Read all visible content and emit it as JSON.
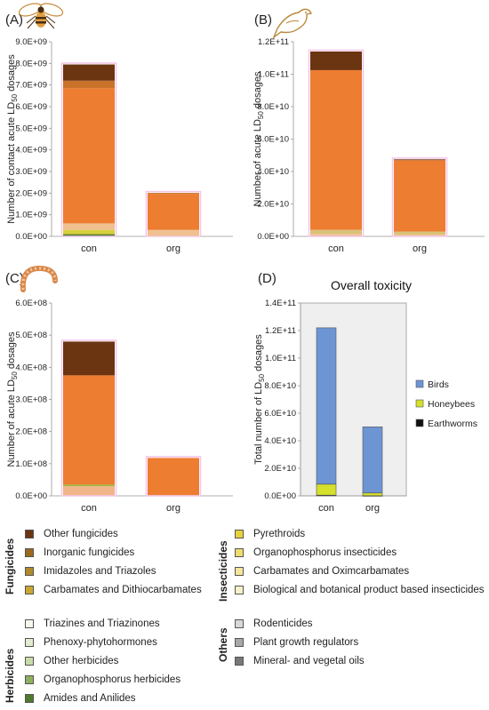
{
  "panels": {
    "a": {
      "label": "(A)",
      "icon": "bee-icon"
    },
    "b": {
      "label": "(B)",
      "icon": "bird-icon"
    },
    "c": {
      "label": "(C)",
      "icon": "earthworm-icon"
    },
    "d": {
      "label": "(D)"
    }
  },
  "chart_data": [
    {
      "type": "bar",
      "stacked": true,
      "panel": "(A)",
      "ylabel": "Number of contact acute LD50 dosages",
      "categories": [
        "con",
        "org"
      ],
      "ylim": [
        0,
        9000000000
      ],
      "yticks": [
        "0.0E+00",
        "1.0E+09",
        "2.0E+09",
        "3.0E+09",
        "4.0E+09",
        "5.0E+09",
        "6.0E+09",
        "7.0E+09",
        "8.0E+09",
        "9.0E+09"
      ],
      "series": [
        {
          "color": "#4e7a2e",
          "values": [
            100000000,
            20000000
          ]
        },
        {
          "color": "#d8cf3a",
          "values": [
            200000000,
            20000000
          ]
        },
        {
          "color": "#f0c090",
          "values": [
            300000000,
            260000000
          ]
        },
        {
          "color": "#ed7d31",
          "values": [
            6250000000,
            1660000000
          ]
        },
        {
          "color": "#c9722a",
          "values": [
            350000000,
            50000000
          ]
        },
        {
          "color": "#6b3512",
          "values": [
            750000000,
            0
          ]
        }
      ]
    },
    {
      "type": "bar",
      "stacked": true,
      "panel": "(B)",
      "ylabel": "Number of acute LD50 dosages",
      "categories": [
        "con",
        "org"
      ],
      "ylim": [
        0,
        120000000000
      ],
      "yticks": [
        "0.0E+00",
        "2.0E+10",
        "4.0E+10",
        "6.0E+10",
        "8.0E+10",
        "1.0E+11",
        "1.2E+11"
      ],
      "series": [
        {
          "color": "#f0c090",
          "values": [
            1500000000,
            1000000000
          ]
        },
        {
          "color": "#d9c27a",
          "values": [
            2500000000,
            2000000000
          ]
        },
        {
          "color": "#ed7d31",
          "values": [
            98500000000,
            44000000000
          ]
        },
        {
          "color": "#6b3512",
          "values": [
            11500000000,
            500000000
          ]
        }
      ]
    },
    {
      "type": "bar",
      "stacked": true,
      "panel": "(C)",
      "ylabel": "Number of acute LD50 dosages",
      "categories": [
        "con",
        "org"
      ],
      "ylim": [
        0,
        600000000
      ],
      "yticks": [
        "0.0E+00",
        "1.0E+08",
        "2.0E+08",
        "3.0E+08",
        "4.0E+08",
        "5.0E+08",
        "6.0E+08"
      ],
      "series": [
        {
          "color": "#f2b48a",
          "values": [
            30000000,
            0
          ]
        },
        {
          "color": "#9cb83c",
          "values": [
            5000000,
            2000000
          ]
        },
        {
          "color": "#ed7d31",
          "values": [
            340000000,
            116000000
          ]
        },
        {
          "color": "#6b3512",
          "values": [
            105000000,
            0
          ]
        }
      ]
    },
    {
      "type": "bar",
      "stacked": true,
      "panel": "(D)",
      "title": "Overall toxicity",
      "ylabel": "Total number of LD50 dosages",
      "categories": [
        "con",
        "org"
      ],
      "ylim": [
        0,
        140000000000
      ],
      "yticks": [
        "0.0E+00",
        "2.0E+10",
        "4.0E+10",
        "6.0E+10",
        "8.0E+10",
        "1.0E+11",
        "1.2E+11",
        "1.4E+11"
      ],
      "legend_position": "right",
      "series": [
        {
          "name": "Earthworms",
          "color": "#111111",
          "values": [
            500000000,
            100000000
          ]
        },
        {
          "name": "Honeybees",
          "color": "#d4e02a",
          "values": [
            8000000000,
            2000000000
          ]
        },
        {
          "name": "Birds",
          "color": "#6d95d4",
          "values": [
            113500000000,
            48000000000
          ]
        }
      ]
    }
  ],
  "legend": {
    "groups": [
      {
        "name": "Fungicides",
        "items": [
          {
            "label": "Other fungicides",
            "color": "#6b3512"
          },
          {
            "label": "Inorganic fungicides",
            "color": "#9a6b1c"
          },
          {
            "label": "Imidazoles and Triazoles",
            "color": "#b08a2a"
          },
          {
            "label": "Carbamates and Dithiocarbamates",
            "color": "#c8a830"
          }
        ]
      },
      {
        "name": "Insecticides",
        "items": [
          {
            "label": "Pyrethroids",
            "color": "#e8d23a"
          },
          {
            "label": "Organophosphorus insecticides",
            "color": "#f0dc6a"
          },
          {
            "label": "Carbamates and Oximcarbamates",
            "color": "#f4e69a"
          },
          {
            "label": "Biological and botanical product based insecticides",
            "color": "#f8f0c8"
          }
        ]
      },
      {
        "name": "Herbicides",
        "items": [
          {
            "label": "Triazines and Triazinones",
            "color": "#f4f8ee"
          },
          {
            "label": "Phenoxy-phytohormones",
            "color": "#e2ecd0"
          },
          {
            "label": "Other herbicides",
            "color": "#c9dba8"
          },
          {
            "label": "Organophosphorus herbicides",
            "color": "#8fb060"
          },
          {
            "label": "Amides and Anilides",
            "color": "#4e7a2e"
          }
        ]
      },
      {
        "name": "Others",
        "items": [
          {
            "label": "Rodenticides",
            "color": "#d8d8d8"
          },
          {
            "label": "Plant growth regulators",
            "color": "#a8a8a8"
          },
          {
            "label": "Mineral- and vegetal oils",
            "color": "#787878"
          }
        ]
      }
    ]
  }
}
